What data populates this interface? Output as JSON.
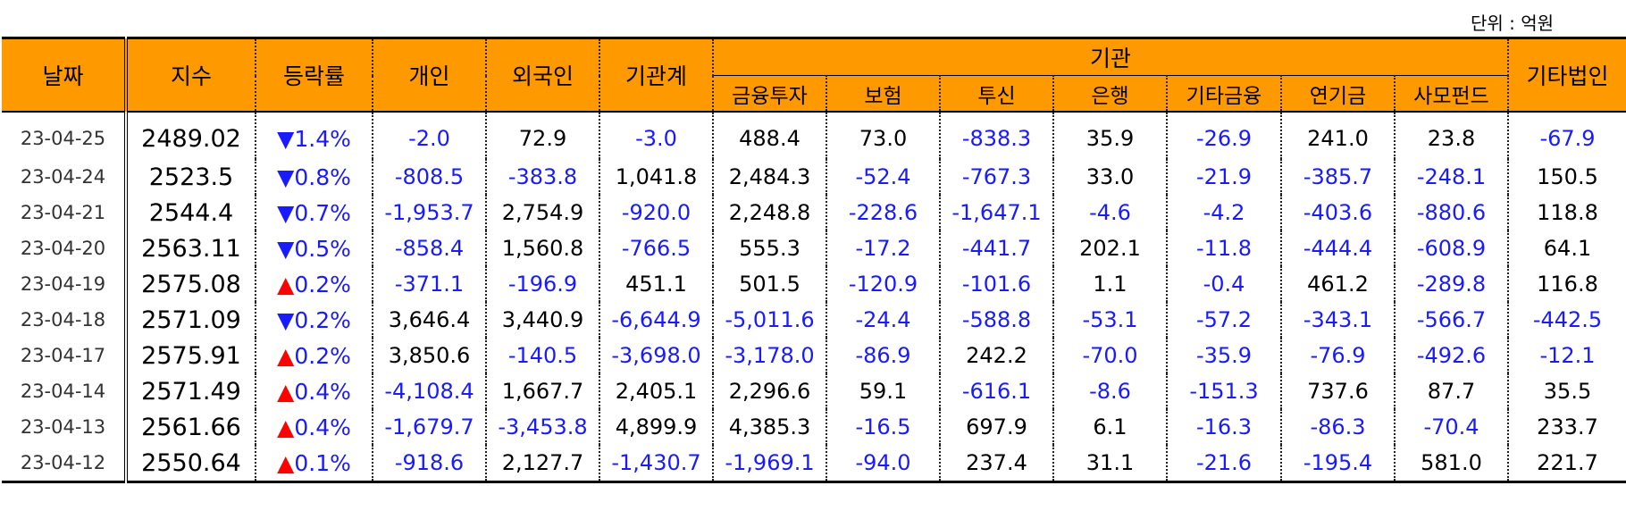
{
  "unit_label": "단위 : 억원",
  "headers": {
    "date": "날짜",
    "index": "지수",
    "change": "등락률",
    "individual": "개인",
    "foreign": "외국인",
    "institution_total": "기관계",
    "institution_group": "기관",
    "sub": [
      "금융투자",
      "보험",
      "투신",
      "은행",
      "기타금융",
      "연기금",
      "사모펀드"
    ],
    "other_corp": "기타법인"
  },
  "rows": [
    {
      "date": "23-04-25",
      "index": "2489.02",
      "dir": "down",
      "arrow": "▼",
      "change": "1.4%",
      "individual": "-2.0",
      "foreign": "72.9",
      "institution_total": "-3.0",
      "fin_invest": "488.4",
      "insurance": "73.0",
      "trust": "-838.3",
      "bank": "35.9",
      "other_fin": "-26.9",
      "pension": "241.0",
      "private_fund": "23.8",
      "other_corp": "-67.9"
    },
    {
      "date": "23-04-24",
      "index": "2523.5",
      "dir": "down",
      "arrow": "▼",
      "change": "0.8%",
      "individual": "-808.5",
      "foreign": "-383.8",
      "institution_total": "1,041.8",
      "fin_invest": "2,484.3",
      "insurance": "-52.4",
      "trust": "-767.3",
      "bank": "33.0",
      "other_fin": "-21.9",
      "pension": "-385.7",
      "private_fund": "-248.1",
      "other_corp": "150.5"
    },
    {
      "date": "23-04-21",
      "index": "2544.4",
      "dir": "down",
      "arrow": "▼",
      "change": "0.7%",
      "individual": "-1,953.7",
      "foreign": "2,754.9",
      "institution_total": "-920.0",
      "fin_invest": "2,248.8",
      "insurance": "-228.6",
      "trust": "-1,647.1",
      "bank": "-4.6",
      "other_fin": "-4.2",
      "pension": "-403.6",
      "private_fund": "-880.6",
      "other_corp": "118.8"
    },
    {
      "date": "23-04-20",
      "index": "2563.11",
      "dir": "down",
      "arrow": "▼",
      "change": "0.5%",
      "individual": "-858.4",
      "foreign": "1,560.8",
      "institution_total": "-766.5",
      "fin_invest": "555.3",
      "insurance": "-17.2",
      "trust": "-441.7",
      "bank": "202.1",
      "other_fin": "-11.8",
      "pension": "-444.4",
      "private_fund": "-608.9",
      "other_corp": "64.1"
    },
    {
      "date": "23-04-19",
      "index": "2575.08",
      "dir": "up",
      "arrow": "▲",
      "change": "0.2%",
      "individual": "-371.1",
      "foreign": "-196.9",
      "institution_total": "451.1",
      "fin_invest": "501.5",
      "insurance": "-120.9",
      "trust": "-101.6",
      "bank": "1.1",
      "other_fin": "-0.4",
      "pension": "461.2",
      "private_fund": "-289.8",
      "other_corp": "116.8"
    },
    {
      "date": "23-04-18",
      "index": "2571.09",
      "dir": "down",
      "arrow": "▼",
      "change": "0.2%",
      "individual": "3,646.4",
      "foreign": "3,440.9",
      "institution_total": "-6,644.9",
      "fin_invest": "-5,011.6",
      "insurance": "-24.4",
      "trust": "-588.8",
      "bank": "-53.1",
      "other_fin": "-57.2",
      "pension": "-343.1",
      "private_fund": "-566.7",
      "other_corp": "-442.5"
    },
    {
      "date": "23-04-17",
      "index": "2575.91",
      "dir": "up",
      "arrow": "▲",
      "change": "0.2%",
      "individual": "3,850.6",
      "foreign": "-140.5",
      "institution_total": "-3,698.0",
      "fin_invest": "-3,178.0",
      "insurance": "-86.9",
      "trust": "242.2",
      "bank": "-70.0",
      "other_fin": "-35.9",
      "pension": "-76.9",
      "private_fund": "-492.6",
      "other_corp": "-12.1"
    },
    {
      "date": "23-04-14",
      "index": "2571.49",
      "dir": "up",
      "arrow": "▲",
      "change": "0.4%",
      "individual": "-4,108.4",
      "foreign": "1,667.7",
      "institution_total": "2,405.1",
      "fin_invest": "2,296.6",
      "insurance": "59.1",
      "trust": "-616.1",
      "bank": "-8.6",
      "other_fin": "-151.3",
      "pension": "737.6",
      "private_fund": "87.7",
      "other_corp": "35.5"
    },
    {
      "date": "23-04-13",
      "index": "2561.66",
      "dir": "up",
      "arrow": "▲",
      "change": "0.4%",
      "individual": "-1,679.7",
      "foreign": "-3,453.8",
      "institution_total": "4,899.9",
      "fin_invest": "4,385.3",
      "insurance": "-16.5",
      "trust": "697.9",
      "bank": "6.1",
      "other_fin": "-16.3",
      "pension": "-86.3",
      "private_fund": "-70.4",
      "other_corp": "233.7"
    },
    {
      "date": "23-04-12",
      "index": "2550.64",
      "dir": "up",
      "arrow": "▲",
      "change": "0.1%",
      "individual": "-918.6",
      "foreign": "2,127.7",
      "institution_total": "-1,430.7",
      "fin_invest": "-1,969.1",
      "insurance": "-94.0",
      "trust": "237.4",
      "bank": "31.1",
      "other_fin": "-21.6",
      "pension": "-195.4",
      "private_fund": "581.0",
      "other_corp": "221.7"
    }
  ],
  "colors": {
    "header_bg": "#FF9900",
    "negative": "#1a1aff",
    "up_arrow": "#ff0000",
    "down_arrow": "#1a1aff"
  }
}
